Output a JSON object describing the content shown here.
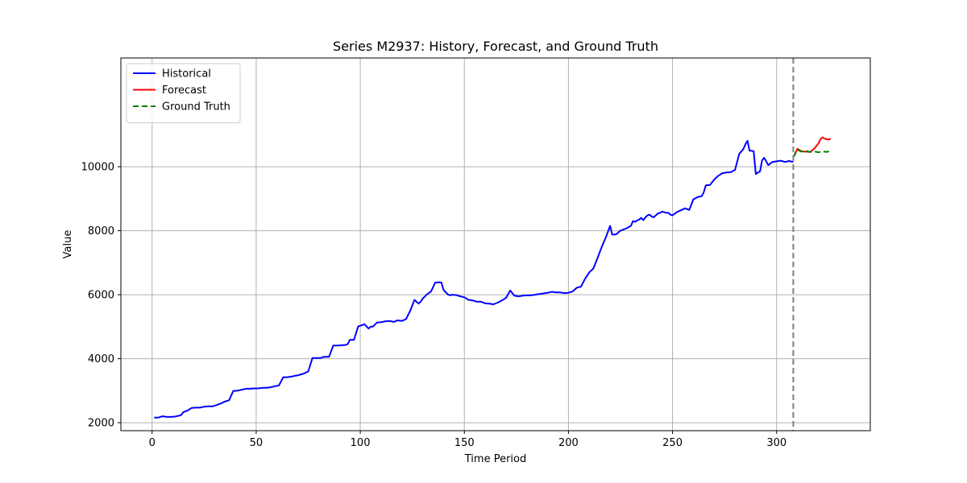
{
  "chart_data": {
    "type": "line",
    "title": "Series M2937: History, Forecast, and Ground Truth",
    "xlabel": "Time Period",
    "ylabel": "Value",
    "xlim": [
      -15,
      345
    ],
    "ylim": [
      1750,
      13400
    ],
    "xticks": [
      0,
      50,
      100,
      150,
      200,
      250,
      300
    ],
    "yticks": [
      2000,
      4000,
      6000,
      8000,
      10000
    ],
    "grid": true,
    "legend_position": "top-left",
    "forecast_origin": 308,
    "series": [
      {
        "name": "Historical",
        "color": "#0000ff",
        "style": "solid",
        "x": [
          1,
          3,
          5,
          7,
          9,
          11,
          13,
          14,
          15,
          17,
          19,
          21,
          23,
          25,
          27,
          29,
          31,
          33,
          35,
          37,
          39,
          41,
          43,
          44,
          45,
          47,
          49,
          51,
          53,
          55,
          57,
          59,
          61,
          63,
          65,
          67,
          69,
          70,
          71,
          73,
          75,
          77,
          79,
          81,
          82,
          83,
          85,
          87,
          89,
          91,
          93,
          94,
          95,
          97,
          99,
          101,
          102,
          103,
          104,
          105,
          106,
          108,
          110,
          112,
          114,
          116,
          118,
          120,
          122,
          124,
          126,
          128,
          129,
          130,
          132,
          134,
          136,
          138,
          139,
          140,
          142,
          143,
          144,
          146,
          148,
          150,
          152,
          154,
          156,
          158,
          160,
          162,
          164,
          166,
          168,
          170,
          172,
          174,
          176,
          177,
          178,
          180,
          182,
          184,
          186,
          188,
          190,
          192,
          194,
          196,
          198,
          200,
          202,
          204,
          206,
          208,
          210,
          212,
          214,
          216,
          218,
          220,
          221,
          222,
          223,
          224,
          225,
          226,
          227,
          228,
          230,
          231,
          232,
          233,
          234,
          235,
          236,
          237,
          238,
          239,
          240,
          241,
          242,
          243,
          244,
          245,
          246,
          247,
          248,
          249,
          250,
          252,
          254,
          256,
          258,
          260,
          262,
          264,
          265,
          266,
          268,
          270,
          272,
          274,
          276,
          278,
          280,
          282,
          284,
          285,
          286,
          287,
          288,
          289,
          290,
          291,
          292,
          293,
          294,
          296,
          298,
          300,
          302,
          304,
          306,
          308
        ],
        "values": [
          2160,
          2160,
          2200,
          2180,
          2180,
          2190,
          2220,
          2240,
          2330,
          2380,
          2460,
          2470,
          2470,
          2500,
          2510,
          2510,
          2550,
          2600,
          2660,
          2700,
          2990,
          3000,
          3030,
          3040,
          3060,
          3060,
          3070,
          3070,
          3090,
          3090,
          3110,
          3140,
          3170,
          3420,
          3420,
          3440,
          3470,
          3480,
          3500,
          3540,
          3600,
          4020,
          4020,
          4020,
          4050,
          4060,
          4060,
          4410,
          4410,
          4420,
          4430,
          4460,
          4590,
          4590,
          5010,
          5050,
          5080,
          5010,
          4940,
          5000,
          5000,
          5130,
          5140,
          5170,
          5180,
          5150,
          5200,
          5180,
          5240,
          5500,
          5840,
          5720,
          5780,
          5880,
          6010,
          6100,
          6380,
          6390,
          6380,
          6150,
          6010,
          5980,
          6000,
          5990,
          5950,
          5920,
          5840,
          5820,
          5780,
          5780,
          5730,
          5720,
          5700,
          5750,
          5820,
          5900,
          6130,
          5970,
          5950,
          5960,
          5970,
          5980,
          5980,
          6000,
          6020,
          6040,
          6060,
          6090,
          6070,
          6070,
          6050,
          6060,
          6100,
          6220,
          6250,
          6500,
          6700,
          6820,
          7150,
          7500,
          7800,
          8150,
          7880,
          7880,
          7890,
          7950,
          8000,
          8030,
          8050,
          8080,
          8150,
          8300,
          8280,
          8320,
          8350,
          8400,
          8330,
          8420,
          8480,
          8500,
          8440,
          8420,
          8480,
          8540,
          8560,
          8600,
          8580,
          8560,
          8560,
          8500,
          8480,
          8580,
          8640,
          8700,
          8650,
          8980,
          9050,
          9080,
          9200,
          9420,
          9430,
          9600,
          9720,
          9800,
          9820,
          9830,
          9900,
          10400,
          10550,
          10700,
          10810,
          10500,
          10500,
          10480,
          9770,
          9820,
          9850,
          10200,
          10280,
          10050,
          10150,
          10170,
          10190,
          10150,
          10180,
          10150
        ]
      },
      {
        "name": "Forecast",
        "color": "#ff0000",
        "style": "solid",
        "x": [
          308,
          310,
          312,
          314,
          316,
          318,
          320,
          321,
          322,
          323,
          324,
          325,
          326
        ],
        "values": [
          10300,
          10560,
          10480,
          10470,
          10460,
          10560,
          10720,
          10850,
          10920,
          10880,
          10860,
          10850,
          10870
        ]
      },
      {
        "name": "Ground Truth",
        "color": "#008000",
        "style": "dashed",
        "x": [
          308,
          310,
          312,
          314,
          316,
          318,
          320,
          322,
          324,
          326
        ],
        "values": [
          10300,
          10530,
          10470,
          10500,
          10460,
          10480,
          10450,
          10480,
          10460,
          10500
        ]
      }
    ]
  }
}
